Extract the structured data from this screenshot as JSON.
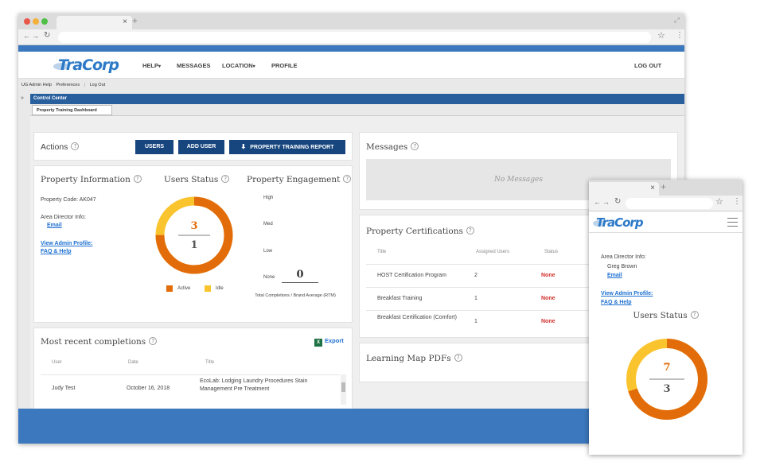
{
  "brand": {
    "logo": "TraCorp"
  },
  "browser": {
    "new_tab": "+",
    "tab_close": "×"
  },
  "header": {
    "nav": [
      {
        "label": "HELP",
        "caret": "▾"
      },
      {
        "label": "MESSAGES",
        "caret": ""
      },
      {
        "label": "LOCATION",
        "caret": "▾"
      },
      {
        "label": "PROFILE",
        "caret": ""
      }
    ],
    "logout": "LOG OUT"
  },
  "subnav": {
    "admin_help": "UG Admin Help",
    "preferences": "Preferences",
    "logout": "Log Out"
  },
  "control_center": {
    "title": "Control Center",
    "tab": "Property Training Dashboard",
    "collapse": "»"
  },
  "actions": {
    "title": "Actions",
    "users": "USERS",
    "add_user": "ADD USER",
    "report": "PROPERTY TRAINING REPORT"
  },
  "property_info": {
    "title": "Property Information",
    "code_label": "Property Code: AK047",
    "area_director_label": "Area Director Info:",
    "email": "Email",
    "view_admin": "View Admin Profile:",
    "faq": "FAQ & Help"
  },
  "users_status": {
    "title": "Users Status",
    "active": 3,
    "idle": 1,
    "active_label": "Active",
    "idle_label": "Idle",
    "colors": {
      "active": "#e36c0a",
      "idle": "#f9c42e"
    }
  },
  "engagement": {
    "title": "Property Engagement",
    "levels": [
      "High",
      "Med",
      "Low",
      "None"
    ],
    "value": "0",
    "caption": "Total Completions / Brand Average (RTM)"
  },
  "messages": {
    "title": "Messages",
    "empty": "No Messages"
  },
  "certifications": {
    "title": "Property Certifications",
    "columns": [
      "Title",
      "Assigned Users",
      "Status"
    ],
    "rows": [
      {
        "title": "HOST Certification Program",
        "users": "2",
        "status": "None"
      },
      {
        "title": "Breakfast Training",
        "users": "1",
        "status": "None"
      },
      {
        "title": "Breakfast Certification (Comfort)",
        "users": "1",
        "status": "None"
      }
    ]
  },
  "learning_map": {
    "title": "Learning Map PDFs"
  },
  "completions": {
    "title": "Most recent completions",
    "export": "Export",
    "columns": [
      "User",
      "Date",
      "Title"
    ],
    "rows": [
      {
        "user": "Judy Test",
        "date": "October 16, 2018",
        "title": "EcoLab: Lodging Laundry Procedures Stain Management Pre Treatment"
      }
    ]
  },
  "mobile": {
    "area_director_label": "Area Director Info:",
    "director_name": "Greg Brown",
    "email": "Email",
    "view_admin": "View Admin Profile:",
    "faq": "FAQ & Help",
    "status_title": "Users Status",
    "active": 7,
    "idle": 3
  }
}
